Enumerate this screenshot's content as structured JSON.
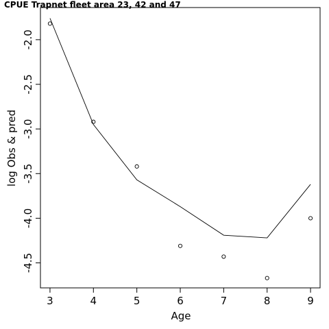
{
  "chart_data": {
    "type": "line",
    "title": "CPUE Trapnet fleet area 23, 42 and 47",
    "xlabel": "Age",
    "ylabel": "log Obs & pred",
    "x_ticks": [
      "3",
      "4",
      "5",
      "6",
      "7",
      "8",
      "9"
    ],
    "y_ticks": [
      "-2.0",
      "-2.5",
      "-3.0",
      "-3.5",
      "-4.0",
      "-4.5"
    ],
    "xlim": [
      2.78,
      9.22
    ],
    "ylim": [
      -4.78,
      -1.64
    ],
    "grid": false,
    "series": [
      {
        "style": "points",
        "marker": "open-circle",
        "x": [
          3,
          4,
          5,
          6,
          7,
          8,
          9
        ],
        "y": [
          -1.82,
          -2.92,
          -3.42,
          -4.31,
          -4.43,
          -4.67,
          -4.0
        ]
      },
      {
        "style": "line",
        "x": [
          3,
          4,
          5,
          6,
          7,
          8,
          9
        ],
        "y": [
          -1.76,
          -2.95,
          -3.57,
          -3.87,
          -4.19,
          -4.22,
          -3.62
        ]
      }
    ]
  }
}
